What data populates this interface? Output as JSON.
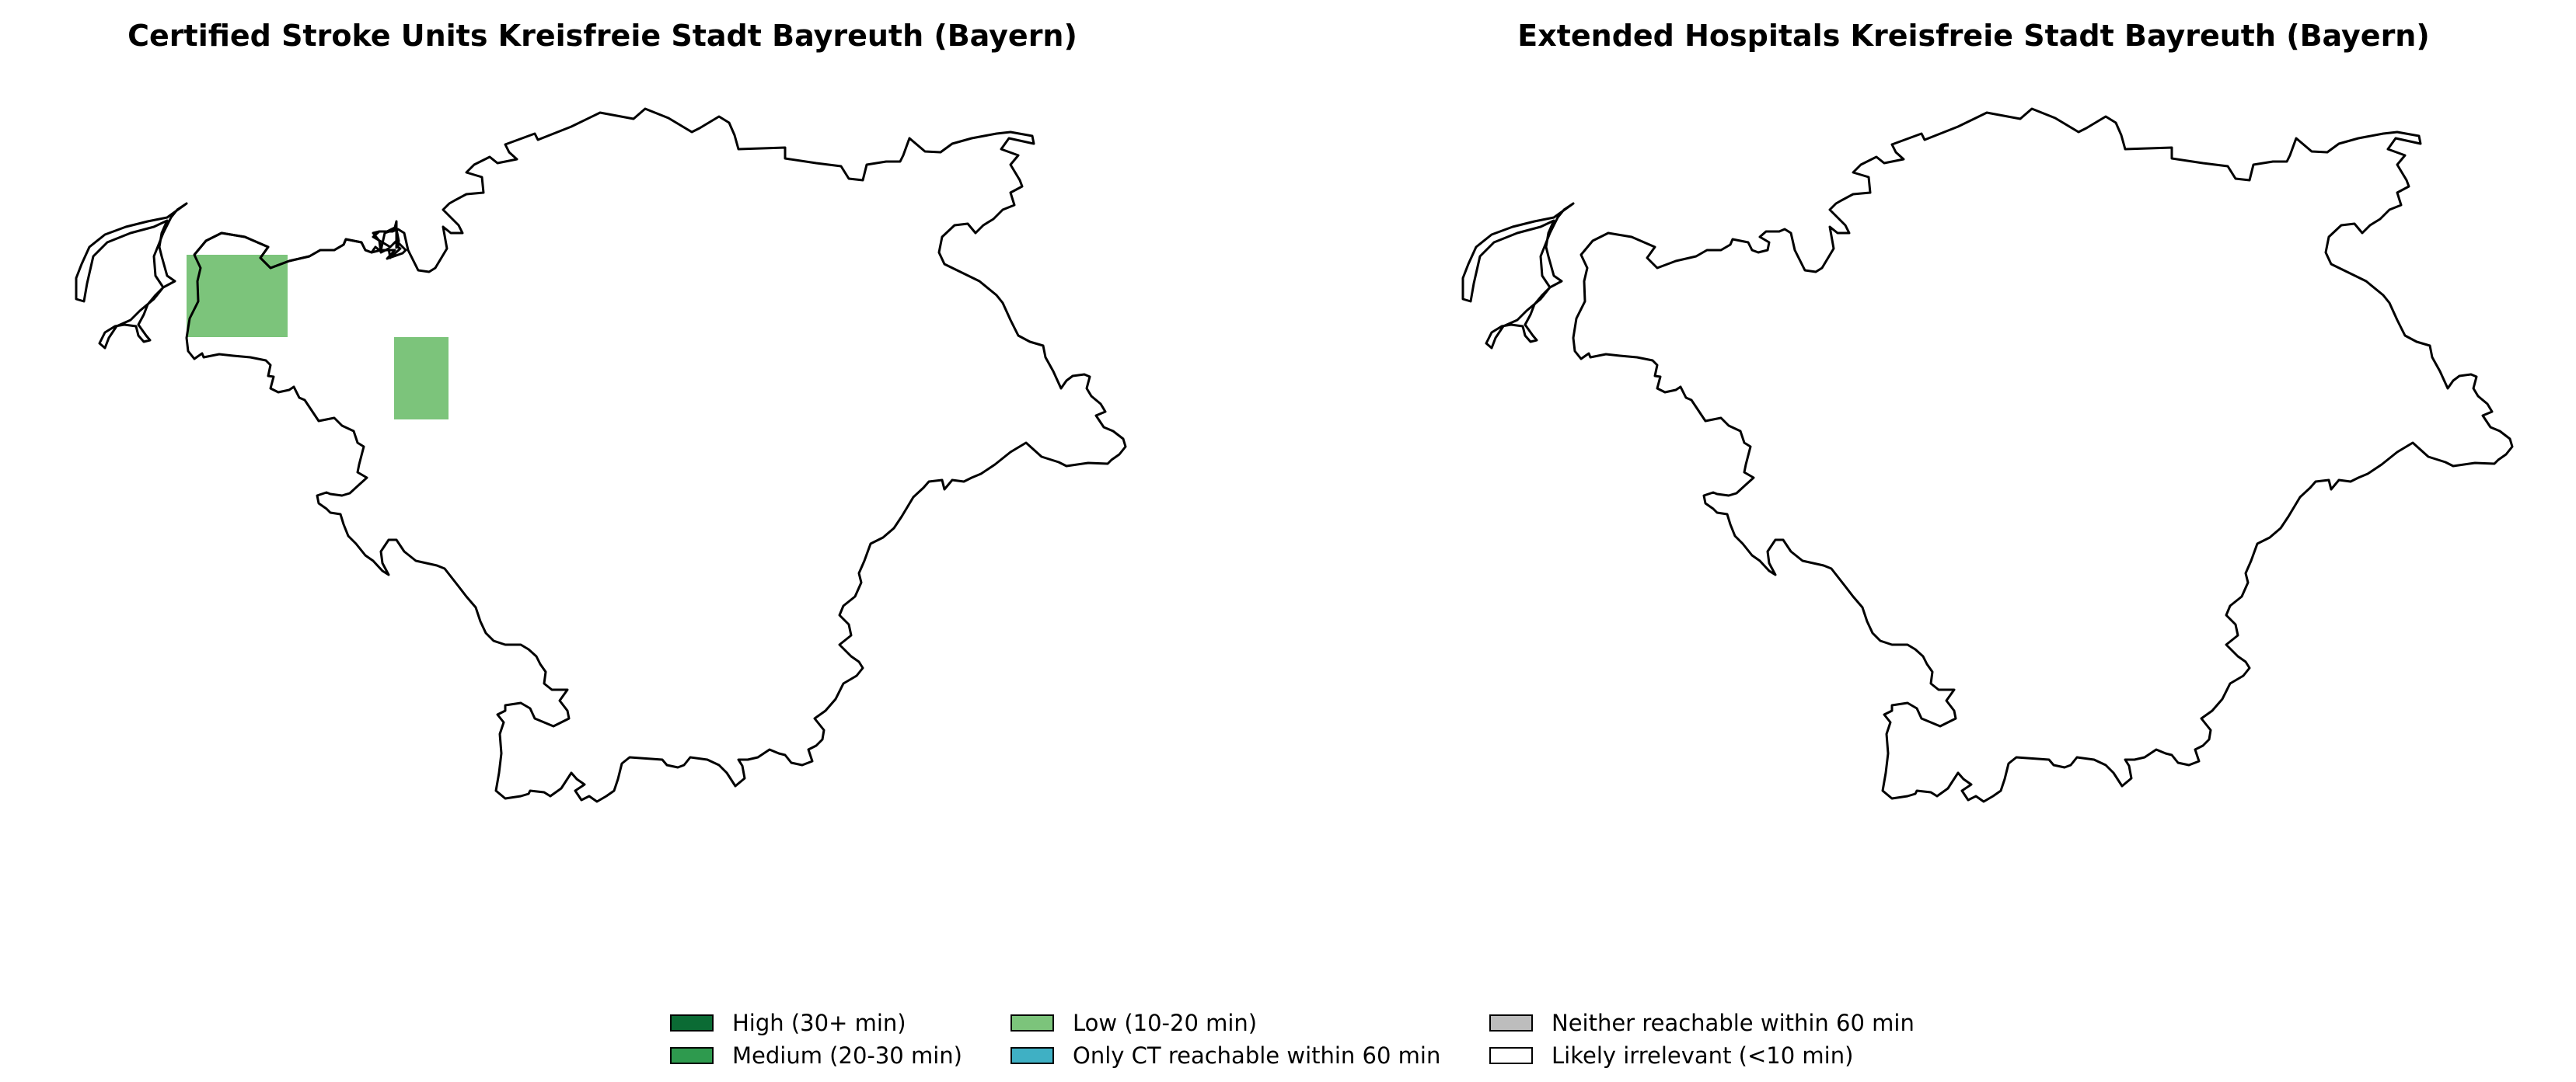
{
  "panels": [
    {
      "title": "Certified Stroke Units Kreisfreie Stadt Bayreuth (Bayern)"
    },
    {
      "title": "Extended Hospitals Kreisfreie Stadt Bayreuth (Bayern)"
    }
  ],
  "legend": [
    {
      "label": "High (30+ min)",
      "color": "#0b6b34"
    },
    {
      "label": "Medium (20-30 min)",
      "color": "#2e9a4e"
    },
    {
      "label": "Low (10-20 min)",
      "color": "#7cc47b"
    },
    {
      "label": "Only CT reachable within 60 min",
      "color": "#3fb0c4"
    },
    {
      "label": "Neither reachable within 60 min",
      "color": "#bdbdbd"
    },
    {
      "label": "Likely irrelevant (<10 min)",
      "color": "#ffffff"
    }
  ],
  "cell_colors": {
    "low": "#7cc47b"
  }
}
